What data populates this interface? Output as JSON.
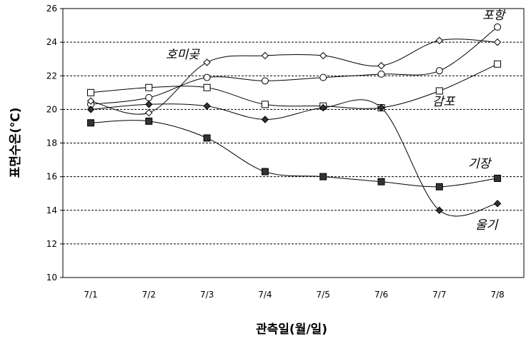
{
  "chart_data": {
    "type": "line",
    "xlabel": "관측일(월/일)",
    "ylabel": "표면수온(℃)",
    "ylim": [
      10,
      26
    ],
    "yticks": [
      10,
      12,
      14,
      16,
      18,
      20,
      22,
      24,
      26
    ],
    "grid": true,
    "legend": "inline labels near series",
    "categories": [
      "7/1",
      "7/2",
      "7/3",
      "7/4",
      "7/5",
      "7/6",
      "7/7",
      "7/8"
    ],
    "series": [
      {
        "name": "포항",
        "marker": "circle-open",
        "values": [
          20.3,
          20.7,
          21.9,
          21.7,
          21.9,
          22.1,
          22.3,
          24.9
        ]
      },
      {
        "name": "호미곶",
        "marker": "diamond-open",
        "values": [
          20.5,
          19.8,
          22.8,
          23.2,
          23.2,
          22.6,
          24.1,
          24.0
        ]
      },
      {
        "name": "감포",
        "marker": "square-open",
        "values": [
          21.0,
          21.3,
          21.3,
          20.3,
          20.2,
          20.1,
          21.1,
          22.7
        ]
      },
      {
        "name": "울기",
        "marker": "diamond-filled",
        "values": [
          20.0,
          20.3,
          20.2,
          19.4,
          20.1,
          20.1,
          14.0,
          14.4
        ]
      },
      {
        "name": "기장",
        "marker": "square-filled",
        "values": [
          19.2,
          19.3,
          18.3,
          16.3,
          16.0,
          15.7,
          15.4,
          15.9
        ]
      }
    ]
  }
}
